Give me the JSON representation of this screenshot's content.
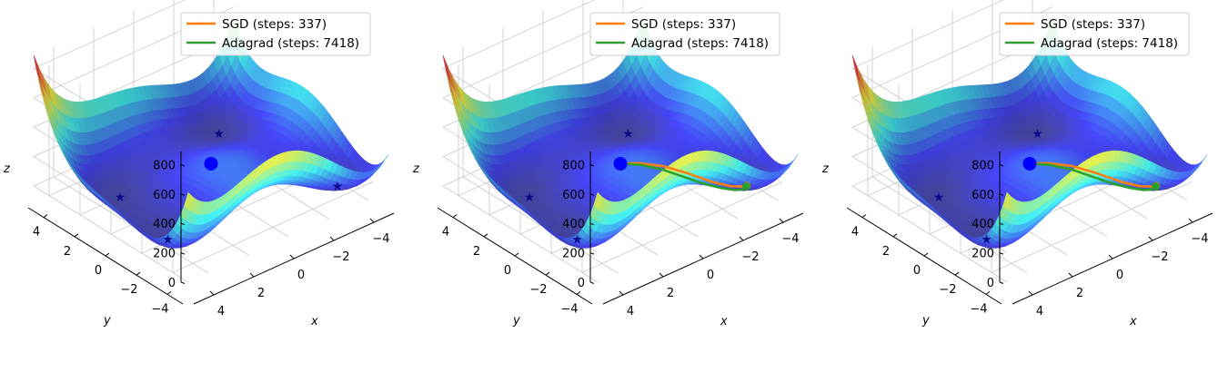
{
  "chart_data": [
    {
      "type": "surface3d",
      "function": "Himmelblau",
      "xlim": [
        -5,
        5
      ],
      "ylim": [
        -5,
        5
      ],
      "zlim": [
        0,
        890
      ],
      "x_ticks": [
        "4",
        "2",
        "0",
        "−2",
        "−4"
      ],
      "y_ticks": [
        "−4",
        "−2",
        "0",
        "2",
        "4"
      ],
      "z_ticks": [
        "0",
        "200",
        "400",
        "600",
        "800"
      ],
      "xlabel": "x",
      "ylabel": "y",
      "zlabel": "z",
      "colormap": "jet",
      "minima": [
        [
          3,
          2
        ],
        [
          -2.805,
          3.131
        ],
        [
          -3.779,
          -3.283
        ],
        [
          3.584,
          -1.848
        ]
      ],
      "start_point": [
        0,
        0
      ],
      "start_color": "#0000ff",
      "series": [
        {
          "name": "SGD (steps: 337)",
          "color": "#ff7f0e",
          "path": []
        },
        {
          "name": "Adagrad (steps: 7418)",
          "color": "#2ca02c",
          "path": []
        }
      ],
      "legend": "top-right"
    },
    {
      "type": "surface3d",
      "function": "Himmelblau",
      "xlim": [
        -5,
        5
      ],
      "ylim": [
        -5,
        5
      ],
      "zlim": [
        0,
        890
      ],
      "x_ticks": [
        "4",
        "2",
        "0",
        "−2",
        "−4"
      ],
      "y_ticks": [
        "−4",
        "−2",
        "0",
        "2",
        "4"
      ],
      "z_ticks": [
        "0",
        "200",
        "400",
        "600",
        "800"
      ],
      "xlabel": "x",
      "ylabel": "y",
      "zlabel": "z",
      "colormap": "jet",
      "minima": [
        [
          3,
          2
        ],
        [
          -2.805,
          3.131
        ],
        [
          -3.779,
          -3.283
        ],
        [
          3.584,
          -1.848
        ]
      ],
      "start_point": [
        0,
        0
      ],
      "start_color": "#0000ff",
      "series": [
        {
          "name": "SGD (steps: 337)",
          "color": "#ff7f0e",
          "path": [
            [
              0,
              0
            ],
            [
              -0.5,
              -0.55
            ],
            [
              -1.2,
              -1.25
            ],
            [
              -1.9,
              -1.95
            ],
            [
              -2.6,
              -2.6
            ],
            [
              -3.2,
              -3.0
            ],
            [
              -3.6,
              -3.2
            ],
            [
              -3.779,
              -3.283
            ]
          ]
        },
        {
          "name": "Adagrad (steps: 7418)",
          "color": "#2ca02c",
          "path": [
            [
              0,
              0
            ],
            [
              -0.45,
              -0.7
            ],
            [
              -0.95,
              -1.45
            ],
            [
              -1.45,
              -2.2
            ],
            [
              -1.95,
              -2.9
            ],
            [
              -2.4,
              -3.45
            ],
            [
              -2.9,
              -3.6
            ],
            [
              -3.4,
              -3.45
            ],
            [
              -3.75,
              -3.3
            ]
          ]
        }
      ],
      "legend": "top-right"
    },
    {
      "type": "surface3d",
      "function": "Himmelblau",
      "xlim": [
        -5,
        5
      ],
      "ylim": [
        -5,
        5
      ],
      "zlim": [
        0,
        890
      ],
      "x_ticks": [
        "4",
        "2",
        "0",
        "−2",
        "−4"
      ],
      "y_ticks": [
        "−4",
        "−2",
        "0",
        "2",
        "4"
      ],
      "z_ticks": [
        "0",
        "200",
        "400",
        "600",
        "800"
      ],
      "xlabel": "x",
      "ylabel": "y",
      "zlabel": "z",
      "colormap": "jet",
      "minima": [
        [
          3,
          2
        ],
        [
          -2.805,
          3.131
        ],
        [
          -3.779,
          -3.283
        ],
        [
          3.584,
          -1.848
        ]
      ],
      "start_point": [
        0,
        0
      ],
      "start_color": "#0000ff",
      "series": [
        {
          "name": "SGD (steps: 337)",
          "color": "#ff7f0e",
          "path": [
            [
              0,
              0
            ],
            [
              -0.5,
              -0.55
            ],
            [
              -1.2,
              -1.25
            ],
            [
              -1.9,
              -1.95
            ],
            [
              -2.6,
              -2.6
            ],
            [
              -3.2,
              -3.0
            ],
            [
              -3.6,
              -3.2
            ],
            [
              -3.779,
              -3.283
            ]
          ]
        },
        {
          "name": "Adagrad (steps: 7418)",
          "color": "#2ca02c",
          "path": [
            [
              0,
              0
            ],
            [
              -0.45,
              -0.7
            ],
            [
              -0.95,
              -1.45
            ],
            [
              -1.45,
              -2.2
            ],
            [
              -1.95,
              -2.9
            ],
            [
              -2.4,
              -3.45
            ],
            [
              -2.9,
              -3.6
            ],
            [
              -3.4,
              -3.45
            ],
            [
              -3.75,
              -3.3
            ]
          ]
        }
      ],
      "legend": "top-right"
    }
  ]
}
